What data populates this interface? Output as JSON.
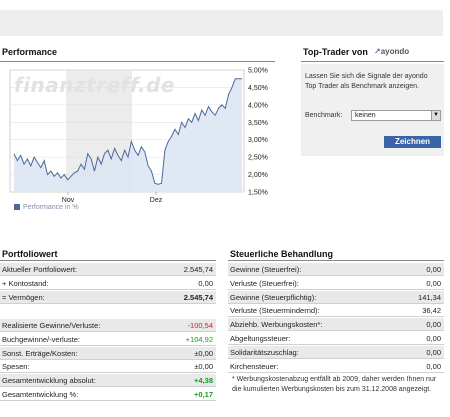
{
  "performance": {
    "title": "Performance",
    "watermark": "finanztreff.de",
    "legend": "Performance in %",
    "series_color": "#4a6a9a",
    "fill_color": "#dbe6f2",
    "highlight_color": "#ececec"
  },
  "chart_data": {
    "type": "area",
    "title": "",
    "xlabel": "",
    "ylabel": "",
    "ylim": [
      1.5,
      5.0
    ],
    "y_ticks": [
      "5,00%",
      "4,50%",
      "4,00%",
      "3,50%",
      "3,00%",
      "2,50%",
      "2,00%",
      "1,50%"
    ],
    "x_ticks": [
      "Nov",
      "Dez"
    ],
    "grid": true,
    "legend_position": "bottom-left",
    "series": [
      {
        "name": "Performance in %",
        "values": [
          2.6,
          2.4,
          2.55,
          2.3,
          2.45,
          2.25,
          2.5,
          2.35,
          2.2,
          2.4,
          2.0,
          2.1,
          1.95,
          2.05,
          1.9,
          2.0,
          1.85,
          1.95,
          2.05,
          2.1,
          2.3,
          2.15,
          2.6,
          2.45,
          2.1,
          2.5,
          2.3,
          2.6,
          2.7,
          2.45,
          2.75,
          2.55,
          2.4,
          2.7,
          2.5,
          2.95,
          2.7,
          2.55,
          2.8,
          2.65,
          2.25,
          2.1,
          1.75,
          1.72,
          1.75,
          2.7,
          2.95,
          3.1,
          3.3,
          3.15,
          3.5,
          3.35,
          3.6,
          3.5,
          3.75,
          3.55,
          3.85,
          3.7,
          3.95,
          3.8,
          3.7,
          3.9,
          4.0,
          3.9,
          4.3,
          4.5,
          4.75,
          4.75,
          4.75
        ]
      }
    ]
  },
  "top_trader": {
    "title": "Top-Trader von",
    "logo": "ayondo",
    "description": "Lassen Sie sich die Signale der ayondo Top Trader als Benchmark anzeigen.",
    "benchmark_label": "Benchmark:",
    "benchmark_value": "keinen",
    "button_label": "Zeichnen"
  },
  "portfolio": {
    "title": "Portfoliowert",
    "rows_top": [
      {
        "label": "Aktueller Portfoliowert:",
        "value": "2.545,74",
        "shade": true
      },
      {
        "label": "+ Kontostand:",
        "value": "0,00",
        "shade": false
      },
      {
        "label": "= Vermögen:",
        "value": "2.545,74",
        "shade": true,
        "bold_value": true
      }
    ],
    "rows_bottom": [
      {
        "label": "Realisierte Gewinne/Verluste:",
        "value": "-100,54",
        "shade": true,
        "tone": "neg"
      },
      {
        "label": "Buchgewinne/-verluste:",
        "value": "+104,92",
        "shade": false,
        "tone": "pos"
      },
      {
        "label": "Sonst. Erträge/Kosten:",
        "value": "±0,00",
        "shade": true
      },
      {
        "label": "Spesen:",
        "value": "±0,00",
        "shade": false
      },
      {
        "label": "Gesamtentwicklung absolut:",
        "value": "+4,38",
        "shade": true,
        "tone": "pos",
        "bold_value": true
      },
      {
        "label": "Gesamtentwicklung %:",
        "value": "+0,17",
        "shade": false,
        "tone": "pos",
        "bold_value": true
      }
    ]
  },
  "tax": {
    "title": "Steuerliche Behandlung",
    "rows": [
      {
        "label": "Gewinne (Steuerfrei):",
        "value": "0,00",
        "shade": true
      },
      {
        "label": "Verluste (Steuerfrei):",
        "value": "0,00",
        "shade": false
      },
      {
        "label": "Gewinne (Steuerpflichtig):",
        "value": "141,34",
        "shade": true
      },
      {
        "label": "Verluste (Steuermindernd):",
        "value": "36,42",
        "shade": false
      },
      {
        "label": "Abziehb. Werbungskosten*:",
        "value": "0,00",
        "shade": true
      },
      {
        "label": "Abgeltungssteuer:",
        "value": "0,00",
        "shade": false
      },
      {
        "label": "Solidaritätszuschlag:",
        "value": "0,00",
        "shade": true
      },
      {
        "label": "Kirchensteuer:",
        "value": "0,00",
        "shade": false
      }
    ],
    "footnote": "* Werbungskostenabzug entfällt ab 2009, daher werden Ihnen nur die kumulierten Werbungskosten bis zum 31.12.2008 angezeigt."
  }
}
